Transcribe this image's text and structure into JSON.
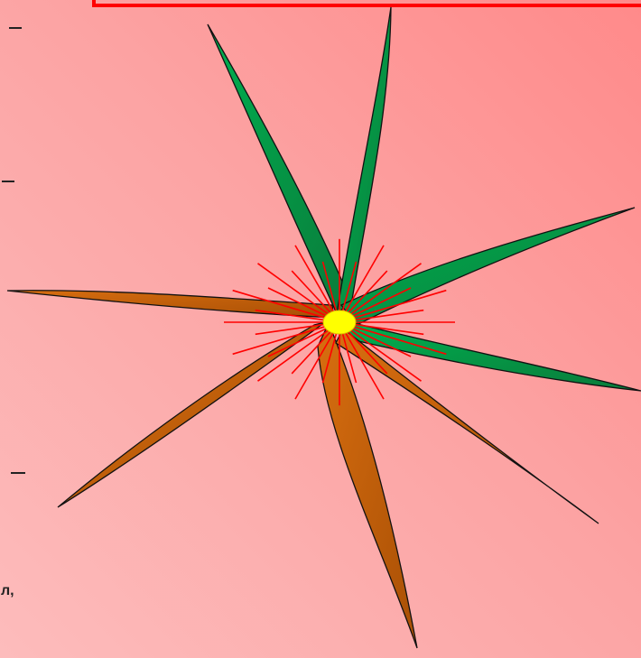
{
  "frame_color": "#ff0000",
  "colors": {
    "background_top": "#ff8a8a",
    "background_bottom": "#fdbcbc",
    "green_petal": "#0a9a4a",
    "brown_petal": "#c8600a",
    "petal_outline": "#111111",
    "burst_ray": "#ff0000",
    "center": "#ffff00"
  },
  "petals": {
    "green_count": 4,
    "brown_count": 4
  },
  "burst_ray_count": 32,
  "text_fragment": "л,",
  "dash_marks": 3
}
